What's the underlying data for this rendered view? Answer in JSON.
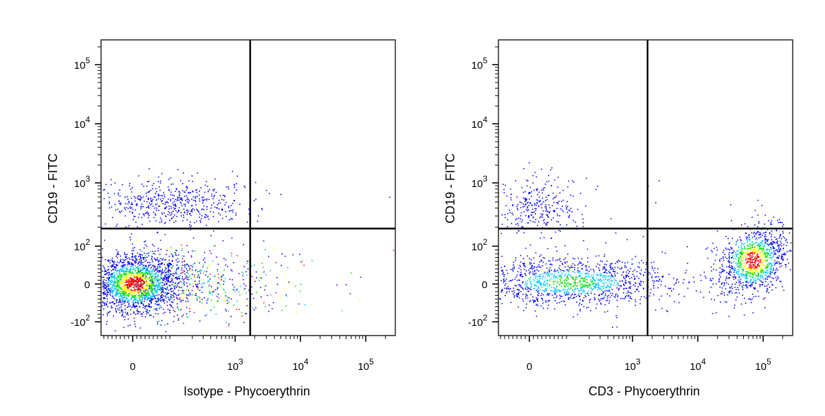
{
  "chart_data": [
    {
      "type": "scatter",
      "xlabel": "Isotype - Phycoerythrin",
      "ylabel": "CD19 - FITC",
      "x_scale": "biexponential",
      "y_scale": "biexponential",
      "x_ticks": [
        {
          "value": 0,
          "base": "0",
          "exp": ""
        },
        {
          "value": 1000,
          "base": "10",
          "exp": "3"
        },
        {
          "value": 10000,
          "base": "10",
          "exp": "4"
        },
        {
          "value": 100000,
          "base": "10",
          "exp": "5"
        }
      ],
      "y_ticks": [
        {
          "value": -100,
          "base": "-10",
          "exp": "2"
        },
        {
          "value": 0,
          "base": "0",
          "exp": ""
        },
        {
          "value": 100,
          "base": "10",
          "exp": "2"
        },
        {
          "value": 1000,
          "base": "10",
          "exp": "3"
        },
        {
          "value": 10000,
          "base": "10",
          "exp": "4"
        },
        {
          "value": 100000,
          "base": "10",
          "exp": "5"
        }
      ],
      "quadrant_gate": {
        "x": 1700,
        "y": 190
      },
      "populations": [
        {
          "label": "CD19- main",
          "x_center": 0,
          "y_center": 0,
          "spread": "wide",
          "density": "very high"
        },
        {
          "label": "CD19+ upper-left",
          "x_center": 150,
          "y_center": 450,
          "spread": "wide",
          "density": "low"
        }
      ],
      "colormap": [
        "#0000ff",
        "#00c8ff",
        "#00e000",
        "#ffff00",
        "#ff0000"
      ]
    },
    {
      "type": "scatter",
      "xlabel": "CD3 - Phycoerythrin",
      "ylabel": "CD19 - FITC",
      "x_scale": "biexponential",
      "y_scale": "biexponential",
      "x_ticks": [
        {
          "value": 0,
          "base": "0",
          "exp": ""
        },
        {
          "value": 1000,
          "base": "10",
          "exp": "3"
        },
        {
          "value": 10000,
          "base": "10",
          "exp": "4"
        },
        {
          "value": 100000,
          "base": "10",
          "exp": "5"
        }
      ],
      "y_ticks": [
        {
          "value": -100,
          "base": "-10",
          "exp": "2"
        },
        {
          "value": 0,
          "base": "0",
          "exp": ""
        },
        {
          "value": 100,
          "base": "10",
          "exp": "2"
        },
        {
          "value": 1000,
          "base": "10",
          "exp": "3"
        },
        {
          "value": 10000,
          "base": "10",
          "exp": "4"
        },
        {
          "value": 100000,
          "base": "10",
          "exp": "5"
        }
      ],
      "quadrant_gate": {
        "x": 1700,
        "y": 190
      },
      "populations": [
        {
          "label": "CD19-CD3- lower-left",
          "x_center": 80,
          "y_center": 5,
          "spread": "wide",
          "density": "medium"
        },
        {
          "label": "CD19+ upper-left",
          "x_center": 20,
          "y_center": 300,
          "spread": "medium",
          "density": "low"
        },
        {
          "label": "CD3+ lower-right",
          "x_center": 60000,
          "y_center": 60,
          "spread": "tight",
          "density": "high"
        }
      ],
      "colormap": [
        "#0000ff",
        "#00c8ff",
        "#00e000",
        "#ffff00",
        "#ff0000"
      ]
    }
  ]
}
